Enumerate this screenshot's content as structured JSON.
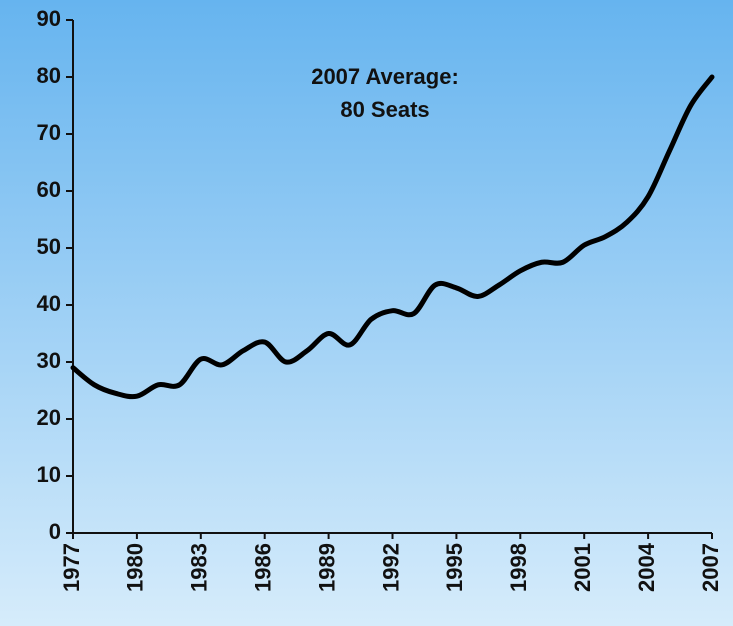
{
  "chart_data": {
    "type": "line",
    "annotation": [
      "2007 Average:",
      "80 Seats"
    ],
    "x": [
      1977,
      1978,
      1979,
      1980,
      1981,
      1982,
      1983,
      1984,
      1985,
      1986,
      1987,
      1988,
      1989,
      1990,
      1991,
      1992,
      1993,
      1994,
      1995,
      1996,
      1997,
      1998,
      1999,
      2000,
      2001,
      2002,
      2003,
      2004,
      2005,
      2006,
      2007
    ],
    "series": [
      {
        "color": "#000000",
        "values": [
          29,
          26,
          24.5,
          24,
          26,
          26,
          30.5,
          29.5,
          32,
          33.5,
          30,
          32,
          35,
          33,
          37.5,
          39,
          38.5,
          43.5,
          43,
          41.5,
          43.5,
          46,
          47.5,
          47.5,
          50.5,
          52,
          54.5,
          59,
          67,
          75,
          80
        ]
      }
    ],
    "xlim": [
      1977,
      2007
    ],
    "xticks": [
      1977,
      1980,
      1983,
      1986,
      1989,
      1992,
      1995,
      1998,
      2001,
      2004,
      2007
    ],
    "ylim": [
      0,
      90
    ],
    "yticks": [
      0,
      10,
      20,
      30,
      40,
      50,
      60,
      70,
      80,
      90
    ],
    "grid": false
  }
}
